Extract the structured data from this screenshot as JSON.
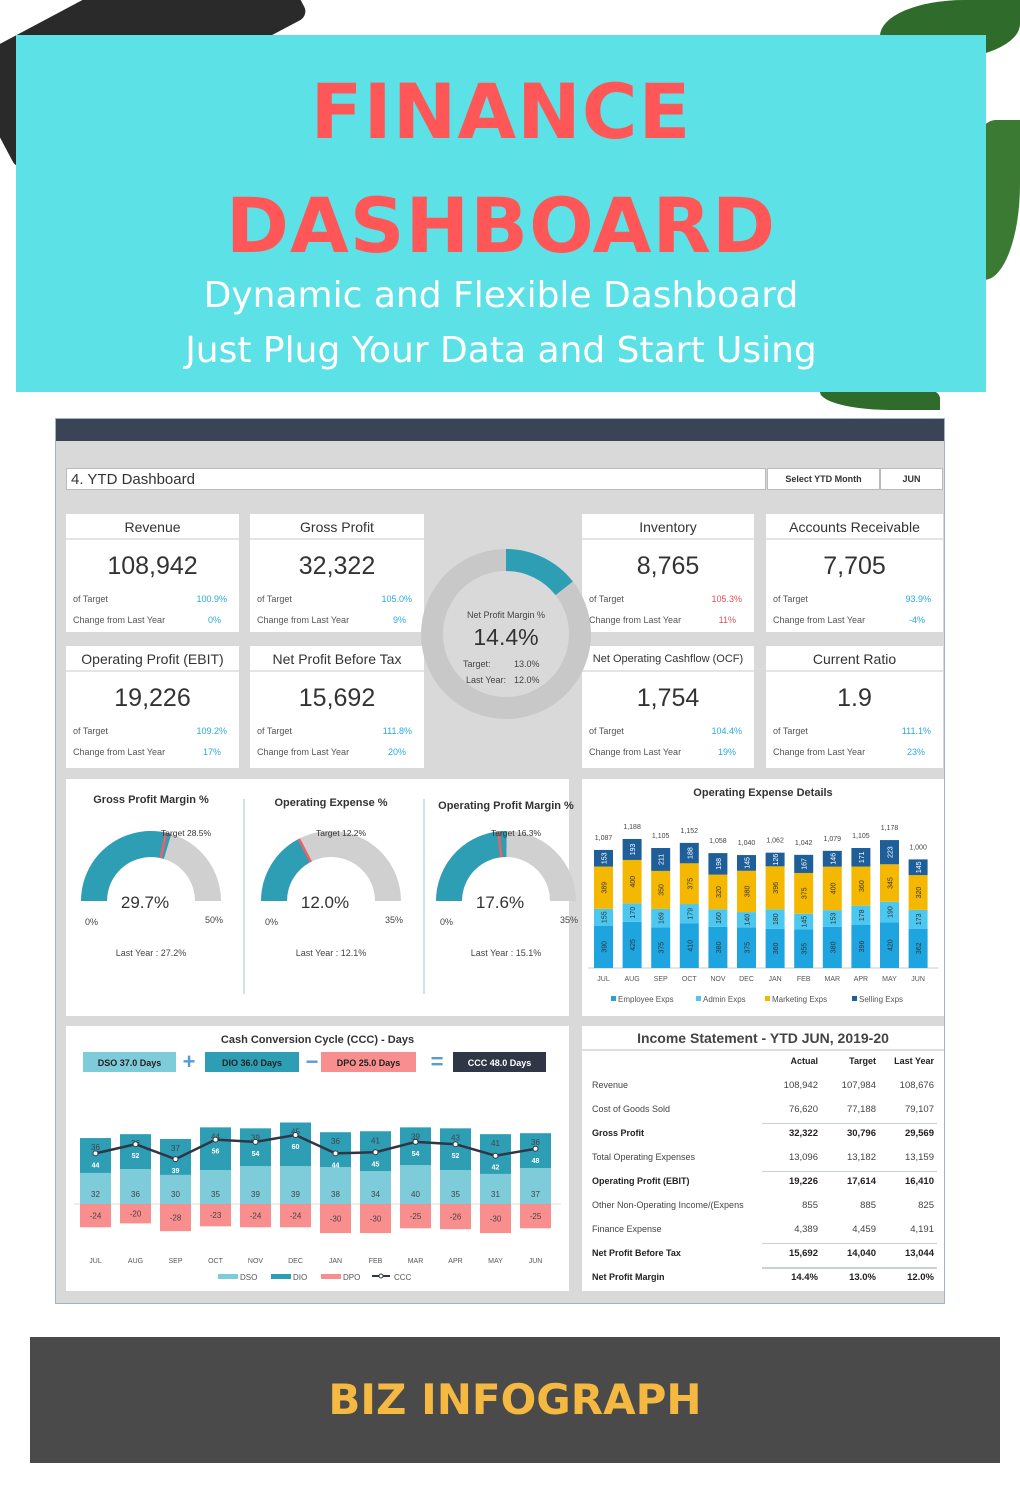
{
  "banner": {
    "title1": "FINANCE",
    "title2": "DASHBOARD",
    "sub1": "Dynamic and Flexible Dashboard",
    "sub2": "Just Plug Your Data and Start Using"
  },
  "header": {
    "title": "4. YTD Dashboard",
    "select_label": "Select YTD Month",
    "select_value": "JUN"
  },
  "labels": {
    "of_target": "of Target",
    "change": "Change from Last Year"
  },
  "kpis": [
    {
      "title": "Revenue",
      "value": "108,942",
      "of_target": "100.9%",
      "change": "0%",
      "status": "good"
    },
    {
      "title": "Gross Profit",
      "value": "32,322",
      "of_target": "105.0%",
      "change": "9%",
      "status": "good"
    },
    {
      "title": "Inventory",
      "value": "8,765",
      "of_target": "105.3%",
      "change": "11%",
      "status": "bad"
    },
    {
      "title": "Accounts Receivable",
      "value": "7,705",
      "of_target": "93.9%",
      "change": "-4%",
      "status": "good"
    },
    {
      "title": "Operating Profit (EBIT)",
      "value": "19,226",
      "of_target": "109.2%",
      "change": "17%",
      "status": "good"
    },
    {
      "title": "Net Profit Before Tax",
      "value": "15,692",
      "of_target": "111.8%",
      "change": "20%",
      "status": "good"
    },
    {
      "title": "Net Operating Cashflow (OCF)",
      "value": "1,754",
      "of_target": "104.4%",
      "change": "19%",
      "status": "good"
    },
    {
      "title": "Current Ratio",
      "value": "1.9",
      "of_target": "111.1%",
      "change": "23%",
      "status": "good"
    }
  ],
  "npm": {
    "label": "Net Profit Margin %",
    "value": "14.4%",
    "value_num": 14.4,
    "target_label": "Target:",
    "target": "13.0%",
    "ly_label": "Last Year:",
    "last_year": "12.0%"
  },
  "gauges": [
    {
      "title": "Gross Profit Margin %",
      "value": 29.7,
      "value_label": "29.7%",
      "min": "0%",
      "max": "50%",
      "max_num": 50,
      "target": 28.5,
      "target_label": "Target 28.5%",
      "last_year": "Last Year : 27.2%"
    },
    {
      "title": "Operating Expense %",
      "value": 12.0,
      "value_label": "12.0%",
      "min": "0%",
      "max": "35%",
      "max_num": 35,
      "target": 12.2,
      "target_label": "Target 12.2%",
      "last_year": "Last Year : 12.1%"
    },
    {
      "title": "Operating Profit Margin %",
      "value": 17.6,
      "value_label": "17.6%",
      "min": "0%",
      "max": "35%",
      "max_num": 35,
      "target": 16.3,
      "target_label": "Target 16.3%",
      "last_year": "Last Year : 15.1%"
    }
  ],
  "colors": {
    "banner": "#5CE1E6",
    "title_red": "#FF5757",
    "teal": "#2e9eb5",
    "employee": "#1ea5e0",
    "admin": "#4cc8f0",
    "marketing": "#f5b800",
    "selling": "#1f5f99",
    "dso": "#7ecbd9",
    "dio": "#2e9eb5",
    "dpo": "#f88e8e",
    "ccc": "#2f3645",
    "brand": "#F5B942"
  },
  "chart_data": [
    {
      "type": "bar",
      "stacked": true,
      "title": "Operating Expense Details",
      "categories": [
        "JUL",
        "AUG",
        "SEP",
        "OCT",
        "NOV",
        "DEC",
        "JAN",
        "FEB",
        "MAR",
        "APR",
        "MAY",
        "JUN"
      ],
      "series": [
        {
          "name": "Employee Exps",
          "values": [
            390,
            425,
            375,
            410,
            380,
            375,
            360,
            355,
            380,
            396,
            420,
            362
          ]
        },
        {
          "name": "Admin Exps",
          "values": [
            155,
            170,
            169,
            179,
            160,
            140,
            180,
            145,
            153,
            178,
            190,
            173
          ]
        },
        {
          "name": "Marketing Exps",
          "values": [
            389,
            400,
            350,
            375,
            320,
            380,
            396,
            375,
            400,
            360,
            345,
            320
          ]
        },
        {
          "name": "Selling Exps",
          "values": [
            153,
            193,
            211,
            188,
            198,
            145,
            126,
            167,
            146,
            171,
            223,
            145
          ]
        }
      ],
      "totals": [
        1087,
        1188,
        1105,
        1152,
        1058,
        1040,
        1062,
        1042,
        1079,
        1105,
        1178,
        1000
      ],
      "legend": "bottom"
    },
    {
      "type": "bar",
      "stacked": true,
      "title": "Cash Conversion Cycle (CCC) - Days",
      "categories": [
        "JUL",
        "AUG",
        "SEP",
        "OCT",
        "NOV",
        "DEC",
        "JAN",
        "FEB",
        "MAR",
        "APR",
        "MAY",
        "JUN"
      ],
      "series": [
        {
          "name": "DSO",
          "values": [
            32,
            36,
            30,
            35,
            39,
            39,
            38,
            34,
            40,
            35,
            31,
            37
          ]
        },
        {
          "name": "DIO",
          "values": [
            36,
            36,
            37,
            44,
            39,
            45,
            36,
            41,
            39,
            43,
            41,
            36
          ]
        },
        {
          "name": "DPO",
          "values": [
            -24,
            -20,
            -28,
            -23,
            -24,
            -24,
            -30,
            -30,
            -25,
            -26,
            -30,
            -25
          ]
        },
        {
          "name": "CCC",
          "type": "line",
          "values": [
            44,
            52,
            39,
            56,
            54,
            60,
            44,
            45,
            54,
            52,
            42,
            48
          ]
        }
      ],
      "summary": [
        {
          "label": "DSO 37.0 Days"
        },
        {
          "op": "+"
        },
        {
          "label": "DIO 36.0 Days"
        },
        {
          "op": "−"
        },
        {
          "label": "DPO 25.0 Days"
        },
        {
          "op": "="
        },
        {
          "label": "CCC 48.0 Days"
        }
      ],
      "legend": "bottom"
    }
  ],
  "income": {
    "title": "Income Statement - YTD JUN, 2019-20",
    "headers": [
      "Actual",
      "Target",
      "Last Year"
    ],
    "rows": [
      {
        "label": "Revenue",
        "v": [
          "108,942",
          "107,984",
          "108,676"
        ],
        "bold": false
      },
      {
        "label": "Cost of Goods Sold",
        "v": [
          "76,620",
          "77,188",
          "79,107"
        ],
        "bold": false
      },
      {
        "label": "Gross Profit",
        "v": [
          "32,322",
          "30,796",
          "29,569"
        ],
        "bold": true
      },
      {
        "label": "Total Operating Expenses",
        "v": [
          "13,096",
          "13,182",
          "13,159"
        ],
        "bold": false
      },
      {
        "label": "Operating Profit (EBIT)",
        "v": [
          "19,226",
          "17,614",
          "16,410"
        ],
        "bold": true
      },
      {
        "label": "Other Non-Operating Income/(Expens",
        "v": [
          "855",
          "885",
          "825"
        ],
        "bold": false
      },
      {
        "label": "Finance Expense",
        "v": [
          "4,389",
          "4,459",
          "4,191"
        ],
        "bold": false
      },
      {
        "label": "Net Profit Before Tax",
        "v": [
          "15,692",
          "14,040",
          "13,044"
        ],
        "bold": true
      },
      {
        "label": "Net Profit Margin",
        "v": [
          "14.4%",
          "13.0%",
          "12.0%"
        ],
        "bold": true
      }
    ]
  },
  "footer": {
    "brand": "BIZ INFOGRAPH"
  }
}
